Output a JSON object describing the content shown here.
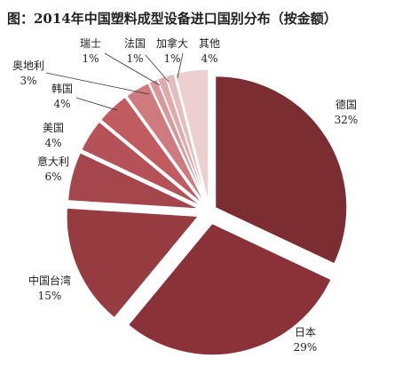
{
  "chart_data": {
    "type": "pie",
    "title": "图：2014年中国塑料成型设备进口国别分布（按金额）",
    "exploded": true,
    "slices": [
      {
        "label": "德国",
        "value": 32,
        "value_label": "32%",
        "color": "#7b2d31"
      },
      {
        "label": "日本",
        "value": 29,
        "value_label": "29%",
        "color": "#8a3237"
      },
      {
        "label": "中国台湾",
        "value": 15,
        "value_label": "15%",
        "color": "#963b40"
      },
      {
        "label": "意大利",
        "value": 6,
        "value_label": "6%",
        "color": "#a4464b"
      },
      {
        "label": "美国",
        "value": 4,
        "value_label": "4%",
        "color": "#b45257"
      },
      {
        "label": "韩国",
        "value": 4,
        "value_label": "4%",
        "color": "#c05b60"
      },
      {
        "label": "奥地利",
        "value": 3,
        "value_label": "3%",
        "color": "#cf7a7e"
      },
      {
        "label": "瑞士",
        "value": 1,
        "value_label": "1%",
        "color": "#d9989b"
      },
      {
        "label": "法国",
        "value": 1,
        "value_label": "1%",
        "color": "#e0aaad"
      },
      {
        "label": "加拿大",
        "value": 1,
        "value_label": "1%",
        "color": "#e6bcbe"
      },
      {
        "label": "其他",
        "value": 4,
        "value_label": "4%",
        "color": "#edcfd0"
      }
    ]
  }
}
